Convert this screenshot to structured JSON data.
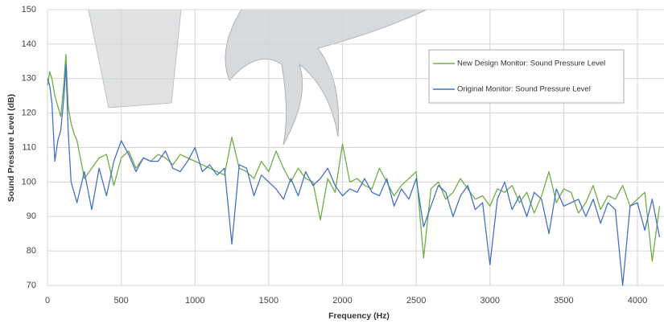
{
  "chart_data": {
    "type": "line",
    "x_label": "Frequency (Hz)",
    "y_label": "Sound Pressure Level (dB)",
    "x": [
      0,
      15,
      30,
      50,
      70,
      90,
      110,
      125,
      140,
      160,
      180,
      200,
      250,
      300,
      350,
      400,
      450,
      500,
      550,
      600,
      650,
      700,
      750,
      800,
      850,
      900,
      950,
      1000,
      1050,
      1100,
      1150,
      1200,
      1250,
      1300,
      1350,
      1400,
      1450,
      1500,
      1550,
      1600,
      1650,
      1700,
      1750,
      1800,
      1850,
      1900,
      1950,
      2000,
      2050,
      2100,
      2150,
      2200,
      2250,
      2300,
      2350,
      2400,
      2450,
      2500,
      2550,
      2600,
      2650,
      2700,
      2750,
      2800,
      2850,
      2900,
      2950,
      3000,
      3050,
      3100,
      3150,
      3200,
      3250,
      3300,
      3350,
      3400,
      3450,
      3500,
      3550,
      3600,
      3650,
      3700,
      3750,
      3800,
      3850,
      3900,
      3950,
      4000,
      4050,
      4100,
      4150
    ],
    "series": [
      {
        "name": "New Design Monitor: Sound Pressure Level",
        "color": "#70ad47",
        "values": [
          128,
          132,
          130,
          125,
          122,
          119,
          128,
          137,
          122,
          117,
          114,
          112,
          101,
          104,
          107,
          108,
          99,
          107,
          109,
          104,
          107,
          106,
          108,
          107,
          105,
          108,
          107,
          106,
          105,
          104,
          103,
          102,
          113,
          104,
          103,
          101,
          106,
          103,
          109,
          104,
          100,
          104,
          101,
          100,
          89,
          101,
          97,
          111,
          100,
          101,
          99,
          98,
          104,
          100,
          96,
          99,
          101,
          103,
          78,
          98,
          100,
          95,
          97,
          101,
          98,
          95,
          96,
          93,
          98,
          97,
          99,
          94,
          97,
          91,
          96,
          103,
          94,
          98,
          97,
          91,
          94,
          99,
          92,
          96,
          95,
          99,
          93,
          95,
          97,
          77,
          93
        ]
      },
      {
        "name": "Original Monitor: Sound Pressure Level",
        "color": "#4472c4",
        "values": [
          130,
          128,
          123,
          106,
          112,
          115,
          124,
          134,
          115,
          100,
          97,
          94,
          103,
          92,
          104,
          96,
          106,
          112,
          108,
          103,
          107,
          106,
          106,
          109,
          104,
          103,
          106,
          110,
          103,
          105,
          102,
          104,
          82,
          105,
          104,
          96,
          102,
          100,
          98,
          95,
          101,
          96,
          103,
          99,
          101,
          104,
          99,
          96,
          98,
          97,
          101,
          97,
          96,
          101,
          93,
          98,
          95,
          101,
          87,
          93,
          99,
          97,
          90,
          96,
          99,
          92,
          94,
          76,
          95,
          100,
          92,
          96,
          90,
          97,
          95,
          85,
          98,
          93,
          94,
          95,
          90,
          95,
          88,
          94,
          92,
          70,
          93,
          94,
          86,
          95,
          84
        ]
      }
    ],
    "xlim": [
      0,
      4180
    ],
    "xticks": [
      0,
      500,
      1000,
      1500,
      2000,
      2500,
      3000,
      3500,
      4000
    ],
    "ylim": [
      70,
      150
    ],
    "yticks": [
      70,
      80,
      90,
      100,
      110,
      120,
      130,
      140,
      150
    ],
    "grid": true,
    "legend": "upper right"
  }
}
